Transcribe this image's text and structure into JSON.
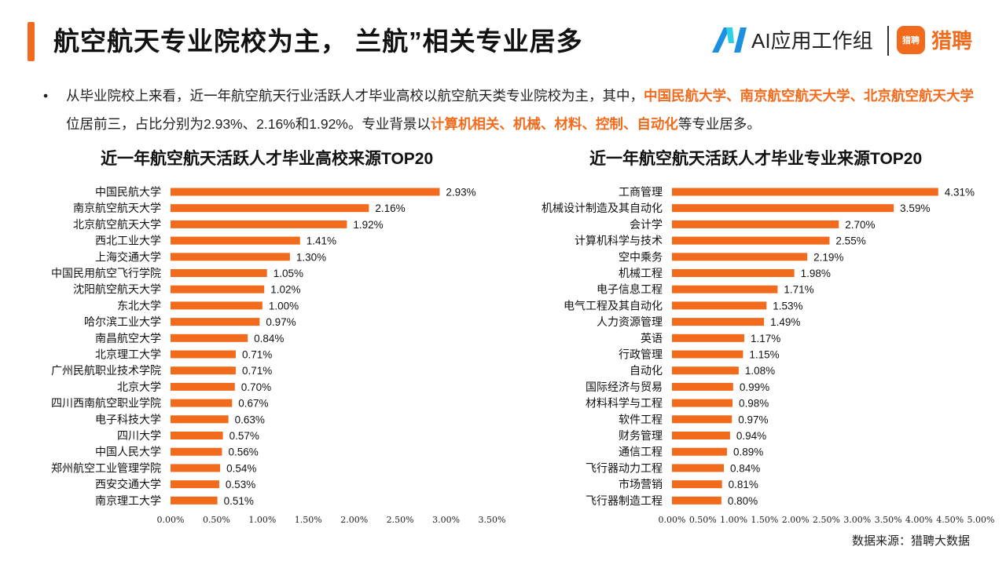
{
  "header": {
    "title": "航空航天专业院校为主， 兰航”相关专业居多",
    "brand_ai_label": "AI应用工作组",
    "brand_liepin_logo_text": "猎聘",
    "brand_liepin_label": "猎聘"
  },
  "summary": {
    "bullet": "•",
    "part1": "从毕业院校上来看，近一年航空航天行业活跃人才毕业高校以航空航天类专业院校为主，其中，",
    "highlight1": "中国民航大学、南京航空航天大学、北京航空航天大学",
    "part2": "位居前三，占比分别为2.93%、2.16%和1.92%。专业背景以",
    "highlight2": "计算机相关、机械、材料、控制、自动化",
    "part3": "等专业居多。"
  },
  "colors": {
    "accent": "#f26b1d",
    "ai_blue": "#1d8fe0",
    "ai_cyan": "#2fd0e6"
  },
  "chart_data": [
    {
      "type": "bar",
      "orientation": "horizontal",
      "title": "近一年航空航天活跃人才毕业高校来源TOP20",
      "categories": [
        "中国民航大学",
        "南京航空航天大学",
        "北京航空航天大学",
        "西北工业大学",
        "上海交通大学",
        "中国民用航空飞行学院",
        "沈阳航空航天大学",
        "东北大学",
        "哈尔滨工业大学",
        "南昌航空大学",
        "北京理工大学",
        "广州民航职业技术学院",
        "北京大学",
        "四川西南航空职业学院",
        "电子科技大学",
        "四川大学",
        "中国人民大学",
        "郑州航空工业管理学院",
        "西安交通大学",
        "南京理工大学"
      ],
      "values": [
        2.93,
        2.16,
        1.92,
        1.41,
        1.3,
        1.05,
        1.02,
        1.0,
        0.97,
        0.84,
        0.71,
        0.71,
        0.7,
        0.67,
        0.63,
        0.57,
        0.56,
        0.54,
        0.53,
        0.51
      ],
      "value_labels": [
        "2.93%",
        "2.16%",
        "1.92%",
        "1.41%",
        "1.30%",
        "1.05%",
        "1.02%",
        "1.00%",
        "0.97%",
        "0.84%",
        "0.71%",
        "0.71%",
        "0.70%",
        "0.67%",
        "0.63%",
        "0.57%",
        "0.56%",
        "0.54%",
        "0.53%",
        "0.51%"
      ],
      "xlim": [
        0,
        3.5
      ],
      "ticks": [
        0,
        0.5,
        1.0,
        1.5,
        2.0,
        2.5,
        3.0,
        3.5
      ],
      "tick_labels": [
        "0.00%",
        "0.50%",
        "1.00%",
        "1.50%",
        "2.00%",
        "2.50%",
        "3.00%",
        "3.50%"
      ],
      "grid": false,
      "bar_color": "#f26b1d"
    },
    {
      "type": "bar",
      "orientation": "horizontal",
      "title": "近一年航空航天活跃人才毕业专业来源TOP20",
      "categories": [
        "工商管理",
        "机械设计制造及其自动化",
        "会计学",
        "计算机科学与技术",
        "空中乘务",
        "机械工程",
        "电子信息工程",
        "电气工程及其自动化",
        "人力资源管理",
        "英语",
        "行政管理",
        "自动化",
        "国际经济与贸易",
        "材料科学与工程",
        "软件工程",
        "财务管理",
        "通信工程",
        "飞行器动力工程",
        "市场营销",
        "飞行器制造工程"
      ],
      "values": [
        4.31,
        3.59,
        2.7,
        2.55,
        2.19,
        1.98,
        1.71,
        1.53,
        1.49,
        1.17,
        1.15,
        1.08,
        0.99,
        0.98,
        0.97,
        0.94,
        0.89,
        0.84,
        0.81,
        0.8
      ],
      "value_labels": [
        "4.31%",
        "3.59%",
        "2.70%",
        "2.55%",
        "2.19%",
        "1.98%",
        "1.71%",
        "1.53%",
        "1.49%",
        "1.17%",
        "1.15%",
        "1.08%",
        "0.99%",
        "0.98%",
        "0.97%",
        "0.94%",
        "0.89%",
        "0.84%",
        "0.81%",
        "0.80%"
      ],
      "xlim": [
        0,
        5.0
      ],
      "ticks": [
        0,
        0.5,
        1.0,
        1.5,
        2.0,
        2.5,
        3.0,
        3.5,
        4.0,
        4.5,
        5.0
      ],
      "tick_labels": [
        "0.00%",
        "0.50%",
        "1.00%",
        "1.50%",
        "2.00%",
        "2.50%",
        "3.00%",
        "3.50%",
        "4.00%",
        "4.50%",
        "5.00%"
      ],
      "grid": false,
      "bar_color": "#f26b1d"
    }
  ],
  "footer": {
    "source": "数据来源：猎聘大数据"
  }
}
